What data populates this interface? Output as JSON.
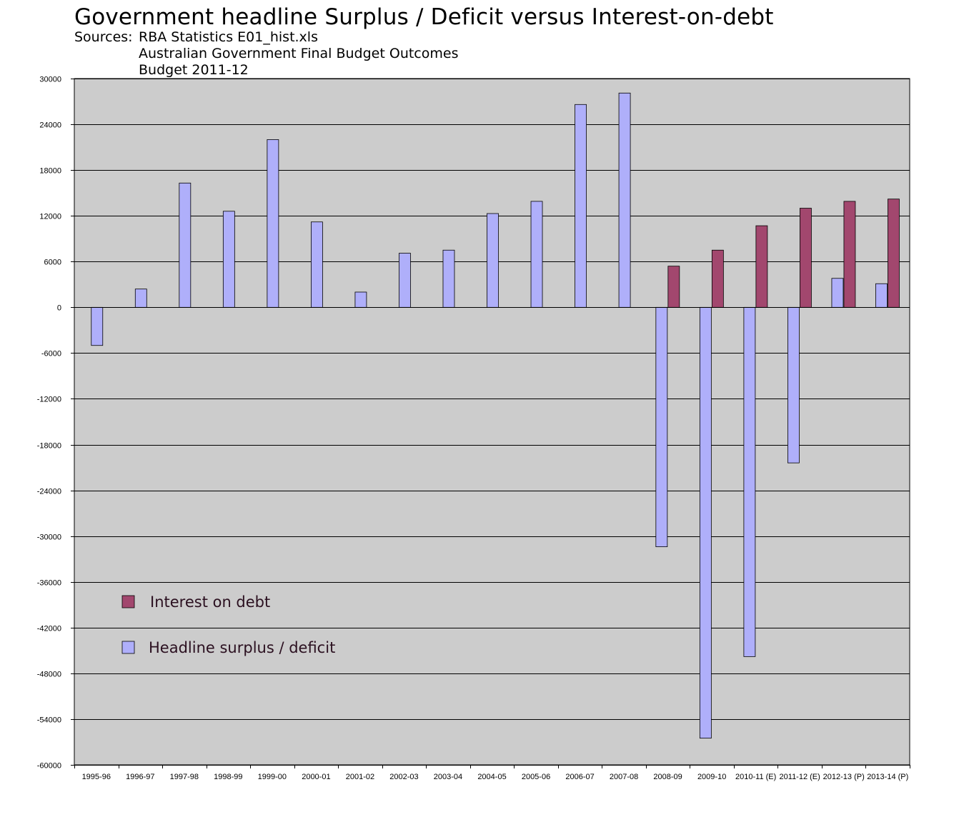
{
  "title": "Government headline Surplus / Deficit versus Interest-on-debt",
  "sources": {
    "label": "Sources:",
    "lines": [
      "RBA Statistics E01_hist.xls",
      "Australian Government Final Budget Outcomes",
      "Budget 2011-12"
    ]
  },
  "chart_data": {
    "type": "bar",
    "title": "Government headline Surplus / Deficit versus Interest-on-debt",
    "xlabel": "",
    "ylabel": "",
    "ylim": [
      -60000,
      30000
    ],
    "yticks": [
      30000,
      24000,
      18000,
      12000,
      6000,
      0,
      -6000,
      -12000,
      -18000,
      -24000,
      -30000,
      -36000,
      -42000,
      -48000,
      -54000,
      -60000
    ],
    "grid": true,
    "legend_position": "lower-left",
    "categories": [
      "1995-96",
      "1996-97",
      "1997-98",
      "1998-99",
      "1999-00",
      "2000-01",
      "2001-02",
      "2002-03",
      "2003-04",
      "2004-05",
      "2005-06",
      "2006-07",
      "2007-08",
      "2008-09",
      "2009-10",
      "2010-11 (E)",
      "2011-12 (E)",
      "2012-13 (P)",
      "2013-14 (P)"
    ],
    "series": [
      {
        "name": "Headline surplus / deficit",
        "color": "#afaffa",
        "values": [
          -5000,
          2400,
          16300,
          12600,
          22000,
          11200,
          2000,
          7100,
          7500,
          12300,
          13900,
          26600,
          28100,
          -31400,
          -56500,
          -45800,
          -20400,
          3800,
          3100
        ]
      },
      {
        "name": "Interest on debt",
        "color": "#a2476e",
        "values": [
          null,
          null,
          null,
          null,
          null,
          null,
          null,
          null,
          null,
          null,
          null,
          null,
          null,
          5400,
          7500,
          10700,
          13000,
          13900,
          14200
        ]
      }
    ]
  },
  "legend": [
    {
      "label": "Interest on debt",
      "color": "#a2476e"
    },
    {
      "label": "Headline surplus / deficit",
      "color": "#afaffa"
    }
  ],
  "colors": {
    "plot_background": "#cccccc",
    "gridline": "#000000"
  }
}
